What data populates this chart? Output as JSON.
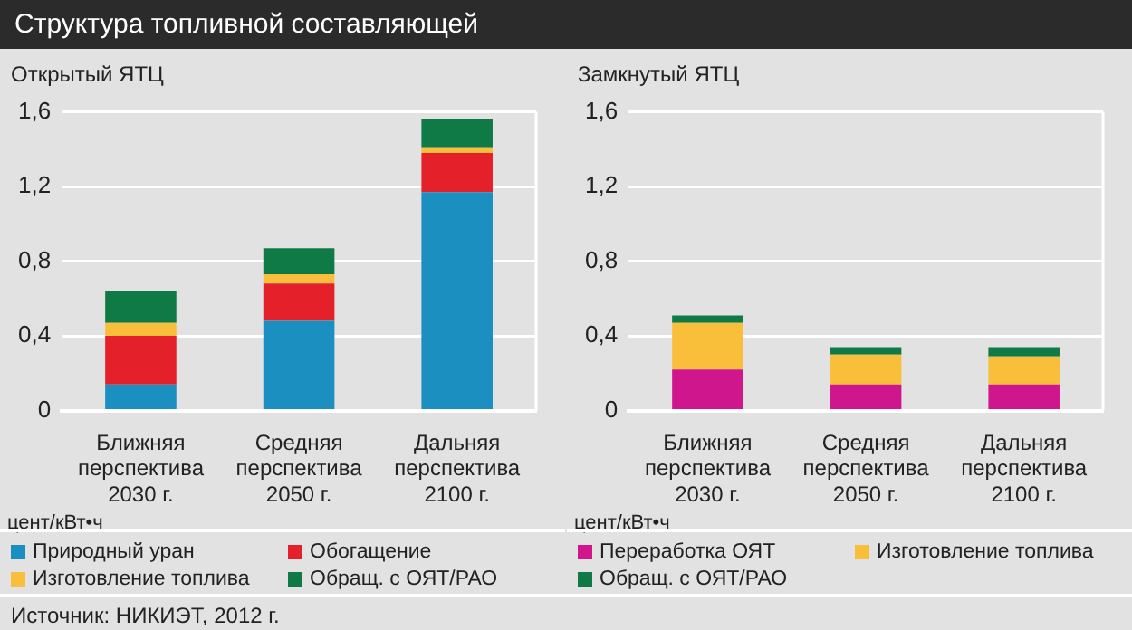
{
  "chart_data": [
    {
      "type": "bar",
      "title": "Структура топливной составляющей",
      "subtitle": "Открытый ЯТЦ",
      "ylabel": "цент/кВт•ч",
      "stacked": true,
      "grid": "y",
      "legend": "bottom",
      "categories": [
        "Ближняя\nперспектива\n2030 г.",
        "Средняя\nперспектива\n2050 г.",
        "Дальняя\nперспектива\n2100 г."
      ],
      "series": [
        {
          "name": "Природный уран",
          "color": "#1a8fc0",
          "values": [
            0.14,
            0.48,
            1.17
          ]
        },
        {
          "name": "Обогащение",
          "color": "#e4202a",
          "values": [
            0.26,
            0.2,
            0.21
          ]
        },
        {
          "name": "Изготовление топлива",
          "color": "#f9bf3b",
          "values": [
            0.07,
            0.05,
            0.03
          ]
        },
        {
          "name": "Обращ. с ОЯТ/РАО",
          "color": "#0f7a45",
          "values": [
            0.17,
            0.14,
            0.15
          ]
        }
      ],
      "ylim": [
        0,
        1.6
      ],
      "yticks": [
        {
          "value": 0,
          "label": "0"
        },
        {
          "value": 0.4,
          "label": "0,4"
        },
        {
          "value": 0.8,
          "label": "0,8"
        },
        {
          "value": 1.2,
          "label": "1,2"
        },
        {
          "value": 1.6,
          "label": "1,6"
        }
      ],
      "annotations": [
        "Источник: НИКИЭТ, 2012 г."
      ]
    },
    {
      "type": "bar",
      "subtitle": "Замкнутый ЯТЦ",
      "ylabel": "цент/кВт•ч",
      "stacked": true,
      "grid": "y",
      "legend": "bottom",
      "categories": [
        "Ближняя\nперспектива\n2030 г.",
        "Средняя\nперспектива\n2050 г.",
        "Дальняя\nперспектива\n2100 г."
      ],
      "series": [
        {
          "name": "Переработка ОЯТ",
          "color": "#d0168c",
          "values": [
            0.22,
            0.14,
            0.14
          ]
        },
        {
          "name": "Изготовление топлива",
          "color": "#f9bf3b",
          "values": [
            0.25,
            0.16,
            0.15
          ]
        },
        {
          "name": "Обращ. с ОЯТ/РАО",
          "color": "#0f7a45",
          "values": [
            0.04,
            0.04,
            0.05
          ]
        }
      ],
      "ylim": [
        0,
        1.6
      ],
      "yticks": [
        {
          "value": 0,
          "label": "0"
        },
        {
          "value": 0.4,
          "label": "0,4"
        },
        {
          "value": 0.8,
          "label": "0,8"
        },
        {
          "value": 1.2,
          "label": "1,2"
        },
        {
          "value": 1.6,
          "label": "1,6"
        }
      ]
    }
  ]
}
